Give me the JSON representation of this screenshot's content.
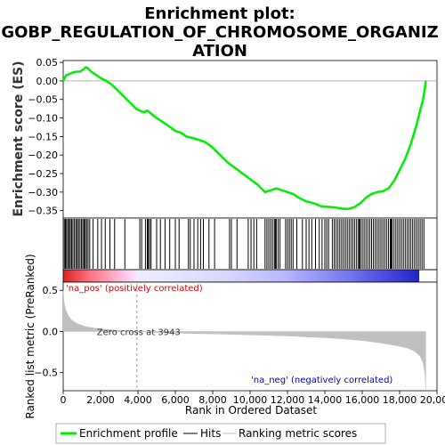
{
  "title_line1": "Enrichment plot:",
  "title_line2": "GOBP_REGULATION_OF_CHROMOSOME_ORGANIZ",
  "title_line3": "ATION",
  "chart_data": {
    "type": "line",
    "es_axis": {
      "label": "Enrichment score (ES)",
      "ylim": [
        -0.37,
        0.055
      ],
      "ticks": [
        0.05,
        0.0,
        -0.05,
        -0.1,
        -0.15,
        -0.2,
        -0.25,
        -0.3,
        -0.35
      ],
      "tick_labels": [
        "0.05",
        "0.00",
        "−0.05",
        "−0.10",
        "−0.15",
        "−0.20",
        "−0.25",
        "−0.30",
        "−0.35"
      ]
    },
    "metric_axis": {
      "label": "Ranked list metric (PreRanked)",
      "ylim": [
        -0.72,
        0.6
      ],
      "ticks": [
        0.5,
        0.0,
        -0.5
      ],
      "tick_labels": [
        "0.5",
        "0.0",
        "−0.5"
      ]
    },
    "x_axis": {
      "label": "Rank in Ordered Dataset",
      "xlim": [
        0,
        20000
      ],
      "ticks": [
        0,
        2000,
        4000,
        6000,
        8000,
        10000,
        12000,
        14000,
        16000,
        18000,
        20000
      ],
      "tick_labels": [
        "0",
        "2,000",
        "4,000",
        "6,000",
        "8,000",
        "10,000",
        "12,000",
        "14,000",
        "16,000",
        "18,000",
        "20,000"
      ]
    },
    "n_genes": 19400,
    "zero_cross": 3943,
    "zero_cross_label": "Zero cross at 3943",
    "pos_label": "'na_pos' (positively correlated)",
    "neg_label": "'na_neg' (negatively correlated)",
    "enrichment_profile": {
      "x": [
        0,
        150,
        300,
        500,
        700,
        900,
        1100,
        1200,
        1300,
        1500,
        1700,
        2000,
        2300,
        2600,
        3000,
        3300,
        3600,
        3900,
        4100,
        4300,
        4500,
        4700,
        5000,
        5300,
        5600,
        6000,
        6300,
        6600,
        7000,
        7300,
        7600,
        8000,
        8400,
        8800,
        9200,
        9600,
        10000,
        10400,
        10800,
        11100,
        11400,
        11700,
        12000,
        12300,
        12600,
        13000,
        13400,
        13800,
        14200,
        14600,
        15000,
        15300,
        15600,
        15900,
        16200,
        16500,
        16800,
        17100,
        17400,
        17700,
        18000,
        18300,
        18600,
        18900,
        19100,
        19250,
        19350,
        19400
      ],
      "y": [
        0.0,
        0.015,
        0.018,
        0.022,
        0.025,
        0.025,
        0.032,
        0.037,
        0.035,
        0.025,
        0.018,
        0.008,
        0.0,
        -0.01,
        -0.03,
        -0.045,
        -0.06,
        -0.075,
        -0.08,
        -0.085,
        -0.08,
        -0.088,
        -0.1,
        -0.11,
        -0.12,
        -0.135,
        -0.14,
        -0.15,
        -0.155,
        -0.16,
        -0.165,
        -0.18,
        -0.2,
        -0.22,
        -0.235,
        -0.25,
        -0.265,
        -0.28,
        -0.3,
        -0.295,
        -0.29,
        -0.295,
        -0.3,
        -0.305,
        -0.315,
        -0.325,
        -0.33,
        -0.338,
        -0.34,
        -0.342,
        -0.345,
        -0.345,
        -0.34,
        -0.33,
        -0.315,
        -0.305,
        -0.3,
        -0.298,
        -0.29,
        -0.27,
        -0.24,
        -0.21,
        -0.17,
        -0.12,
        -0.08,
        -0.05,
        -0.02,
        0.0
      ]
    },
    "metric_curve": {
      "x": [
        0,
        50,
        150,
        300,
        500,
        800,
        1200,
        1700,
        2300,
        3000,
        3500,
        3943,
        5000,
        6000,
        8000,
        10000,
        12000,
        14000,
        15000,
        16000,
        17000,
        17800,
        18400,
        18800,
        19100,
        19250,
        19350,
        19400
      ],
      "y": [
        0.5,
        0.35,
        0.25,
        0.18,
        0.13,
        0.09,
        0.06,
        0.04,
        0.025,
        0.012,
        0.005,
        0.0,
        -0.012,
        -0.02,
        -0.03,
        -0.04,
        -0.055,
        -0.075,
        -0.09,
        -0.11,
        -0.14,
        -0.17,
        -0.2,
        -0.24,
        -0.3,
        -0.38,
        -0.5,
        -0.7
      ]
    },
    "hits": [
      60,
      120,
      180,
      250,
      320,
      380,
      450,
      520,
      600,
      680,
      750,
      820,
      900,
      980,
      1050,
      1120,
      1180,
      1250,
      1330,
      1420,
      1600,
      1850,
      2050,
      2250,
      2500,
      2750,
      3300,
      4100,
      4200,
      4400,
      4500,
      4550,
      4620,
      4700,
      5000,
      5200,
      5450,
      5700,
      6000,
      6200,
      6700,
      6800,
      7000,
      7200,
      7350,
      7500,
      7800,
      8100,
      8900,
      9000,
      9300,
      9900,
      10050,
      10200,
      10350,
      10800,
      10900,
      11000,
      11100,
      11200,
      11300,
      11350,
      11400,
      11500,
      11600,
      11900,
      12000,
      12100,
      12200,
      12300,
      12500,
      12800,
      13000,
      13150,
      13300,
      13500,
      13700,
      13850,
      14000,
      14100,
      14200,
      14400,
      14500,
      14600,
      14700,
      14800,
      14900,
      15000,
      15100,
      15200,
      15300,
      15400,
      15500,
      15600,
      15700,
      15800,
      15850,
      15900,
      16000,
      16100,
      16200,
      16300,
      16400,
      16500,
      16600,
      16700,
      16800,
      16900,
      17000,
      17100,
      17200,
      17300,
      17400,
      17500,
      17550,
      17600,
      17700,
      17800,
      17900,
      18000,
      18100,
      18200,
      18300,
      18400,
      18500,
      18600,
      18700,
      18800,
      18900,
      19000,
      19100,
      19200,
      19300
    ],
    "legend": [
      "Enrichment profile",
      "Hits",
      "Ranking metric scores"
    ],
    "colors": {
      "profile": "#00ee00",
      "hits": "#000000",
      "metric_fill": "#c0c0c0",
      "pos_text": "#dd0000",
      "neg_text": "#0000cc",
      "zero_line": "#999999"
    }
  }
}
